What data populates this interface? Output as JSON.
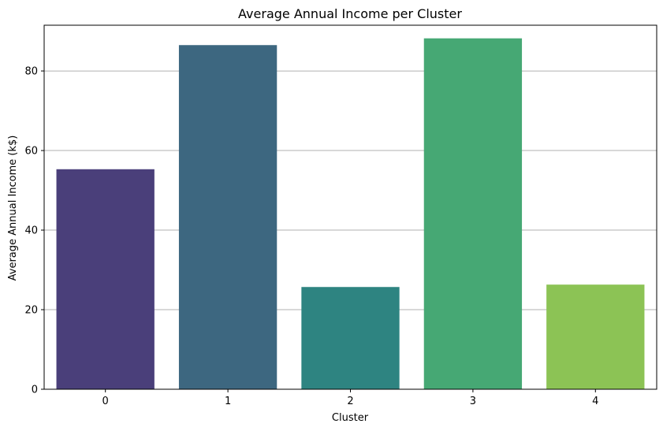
{
  "chart_data": {
    "type": "bar",
    "title": "Average Annual Income per Cluster",
    "xlabel": "Cluster",
    "ylabel": "Average Annual Income (k$)",
    "categories": [
      "0",
      "1",
      "2",
      "3",
      "4"
    ],
    "values": [
      55.3,
      86.5,
      25.7,
      88.2,
      26.3
    ],
    "colors": [
      "#4a3f7a",
      "#3d6780",
      "#2e8481",
      "#46a874",
      "#8cc355"
    ],
    "ylim": [
      0,
      91.5
    ],
    "yticks": [
      0,
      20,
      40,
      60,
      80
    ],
    "grid": "y-axis",
    "legend": "none"
  }
}
